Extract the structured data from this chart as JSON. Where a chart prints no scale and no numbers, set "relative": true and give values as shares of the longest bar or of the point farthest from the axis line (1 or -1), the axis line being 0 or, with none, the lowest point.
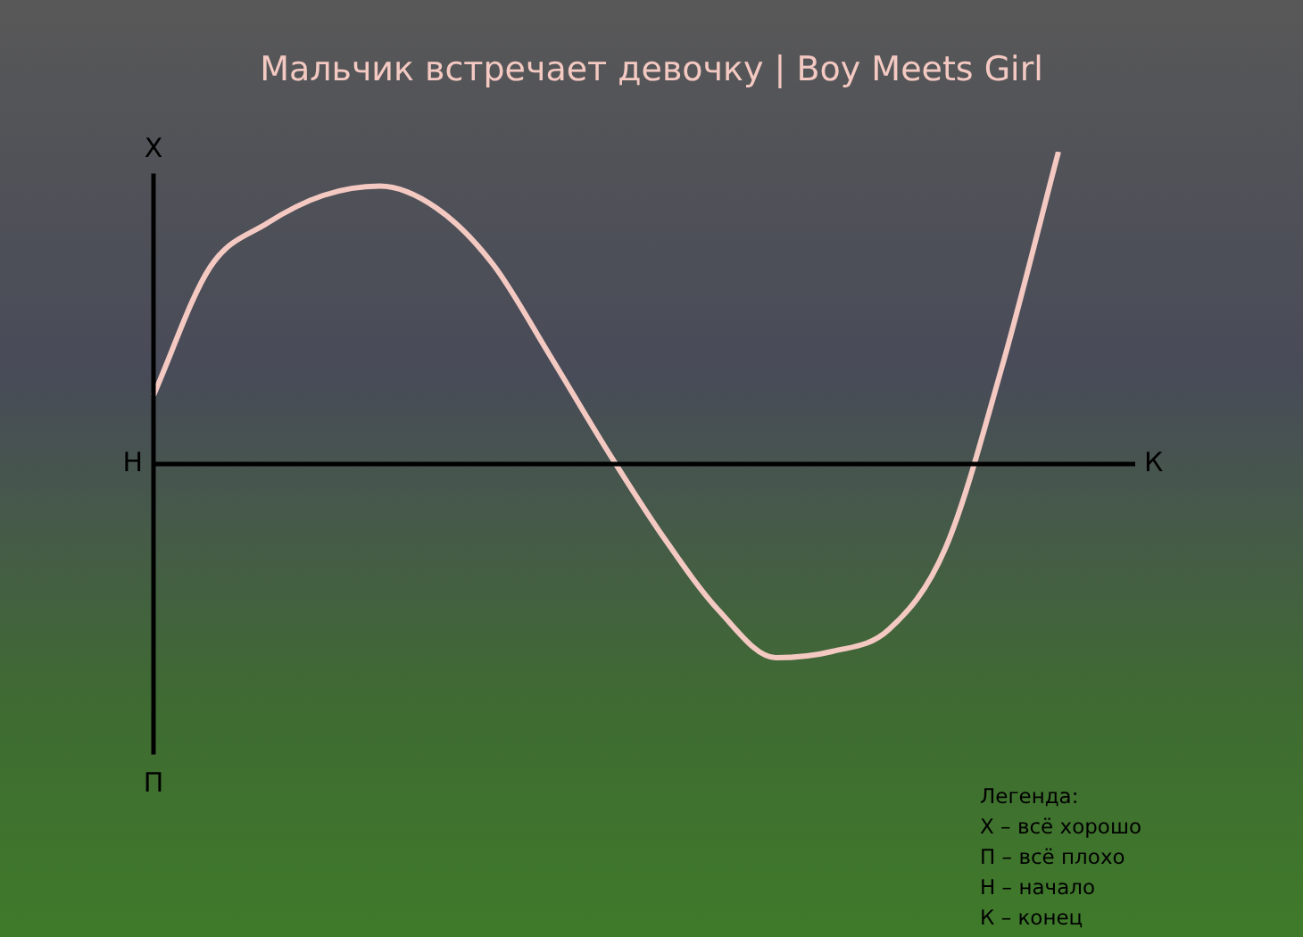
{
  "chart_data": {
    "type": "line",
    "title": "Мальчик встречает девочку | Boy Meets Girl",
    "relative": true,
    "categories": [
      null,
      null,
      null,
      null,
      null,
      null,
      null,
      null,
      null,
      null,
      null,
      null,
      null,
      null,
      null,
      null,
      null
    ],
    "series": [
      {
        "color": "#f4c9c2",
        "values": [
          0.22,
          0.63,
          0.77,
          0.86,
          0.89,
          0.82,
          0.64,
          0.35,
          0.05,
          -0.23,
          -0.47,
          -0.62,
          -0.6,
          -0.53,
          -0.27,
          0.31,
          1
        ]
      }
    ],
    "annotations": [
      "Х",
      "П",
      "Н",
      "К",
      "Легенда:",
      "Х – всё хорошо",
      "П – всё плохо",
      "Н – начало",
      "К – конец"
    ],
    "marker": "none",
    "line_style": "solid",
    "legend": false
  }
}
